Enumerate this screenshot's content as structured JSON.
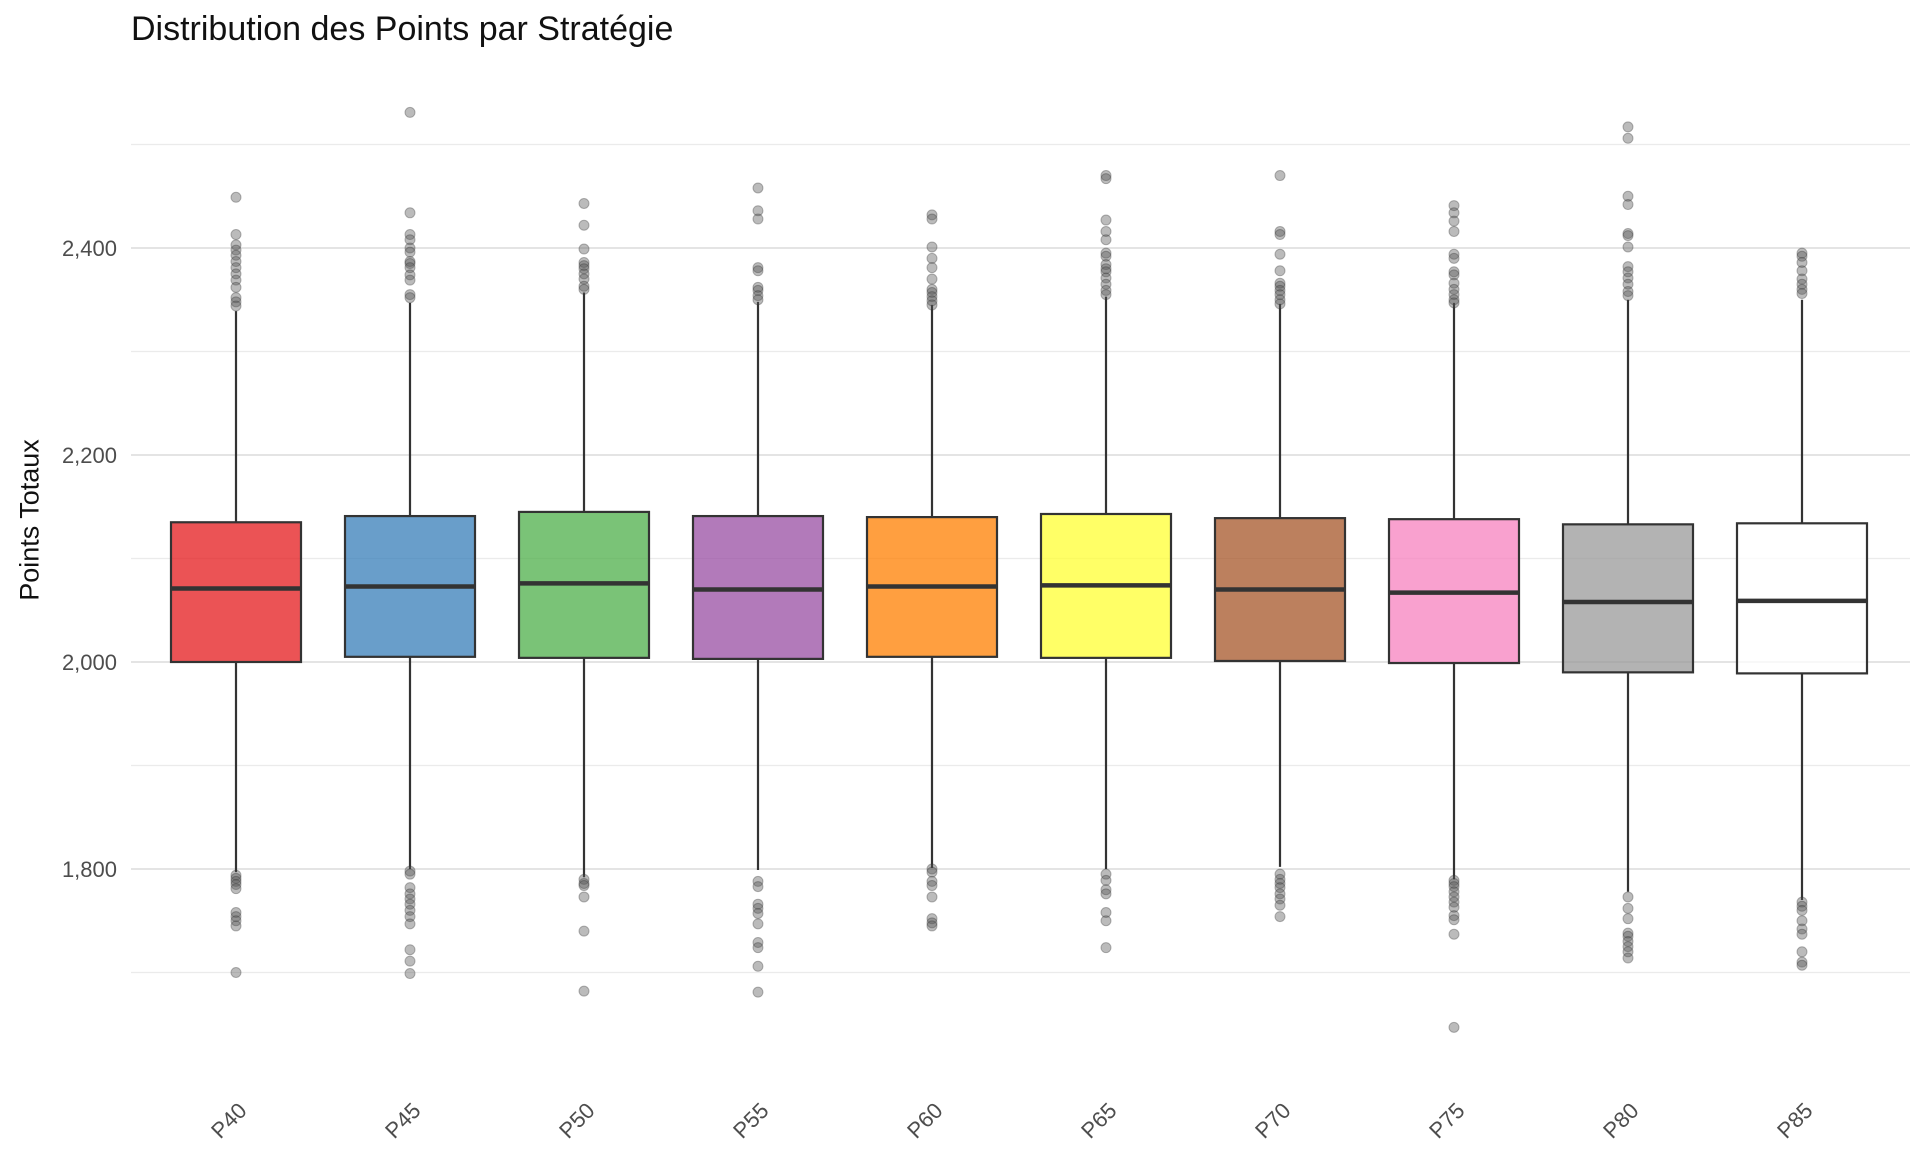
{
  "chart_data": {
    "type": "box",
    "title": "Distribution des Points par Stratégie",
    "xlabel": "",
    "ylabel": "Points Totaux",
    "ylim": [
      1620,
      2550
    ],
    "yticks": [
      1800,
      2000,
      2200,
      2400
    ],
    "ytick_labels": [
      "1,800",
      "2,000",
      "2,200",
      "2,400"
    ],
    "grid": true,
    "legend": "none",
    "categories": [
      "P40",
      "P45",
      "P50",
      "P55",
      "P60",
      "P65",
      "P70",
      "P75",
      "P80",
      "P85"
    ],
    "series": [
      {
        "category": "P40",
        "color": "#E41A1C",
        "q1": 2000,
        "median": 2071,
        "q3": 2135,
        "whisker_low": 1797,
        "whisker_high": 2339,
        "outliers": [
          2449,
          2413,
          2403,
          2398,
          2393,
          2387,
          2381,
          2375,
          2369,
          2362,
          2352,
          2348,
          2344,
          1794,
          1791,
          1788,
          1785,
          1781,
          1758,
          1754,
          1750,
          1745,
          1700
        ]
      },
      {
        "category": "P45",
        "color": "#377EB8",
        "q1": 2005,
        "median": 2073,
        "q3": 2141,
        "whisker_low": 1800,
        "whisker_high": 2347,
        "outliers": [
          2531,
          2434,
          2413,
          2408,
          2400,
          2396,
          2387,
          2385,
          2381,
          2374,
          2369,
          2355,
          2352,
          1798,
          1795,
          1782,
          1776,
          1771,
          1766,
          1760,
          1754,
          1747,
          1722,
          1711,
          1699
        ]
      },
      {
        "category": "P50",
        "color": "#4DAF4A",
        "q1": 2004,
        "median": 2076,
        "q3": 2145,
        "whisker_low": 1792,
        "whisker_high": 2357,
        "outliers": [
          2443,
          2422,
          2399,
          2386,
          2383,
          2380,
          2375,
          2370,
          2363,
          2360,
          1790,
          1786,
          1784,
          1773,
          1740,
          1682
        ]
      },
      {
        "category": "P55",
        "color": "#984EA3",
        "q1": 2003,
        "median": 2070,
        "q3": 2141,
        "whisker_low": 1799,
        "whisker_high": 2348,
        "outliers": [
          2458,
          2436,
          2428,
          2381,
          2378,
          2362,
          2359,
          2354,
          2350,
          1788,
          1783,
          1766,
          1762,
          1757,
          1747,
          1729,
          1724,
          1706,
          1681
        ]
      },
      {
        "category": "P60",
        "color": "#FF7F00",
        "q1": 2005,
        "median": 2073,
        "q3": 2140,
        "whisker_low": 1801,
        "whisker_high": 2345,
        "outliers": [
          2432,
          2428,
          2401,
          2390,
          2381,
          2370,
          2360,
          2357,
          2353,
          2349,
          2345,
          1800,
          1797,
          1788,
          1784,
          1773,
          1752,
          1748,
          1745
        ]
      },
      {
        "category": "P65",
        "color": "#FFFF33",
        "q1": 2004,
        "median": 2074,
        "q3": 2143,
        "whisker_low": 1800,
        "whisker_high": 2353,
        "outliers": [
          2470,
          2467,
          2427,
          2416,
          2408,
          2395,
          2392,
          2384,
          2380,
          2377,
          2371,
          2365,
          2359,
          2355,
          1795,
          1789,
          1780,
          1776,
          1758,
          1750,
          1724
        ]
      },
      {
        "category": "P70",
        "color": "#A65628",
        "q1": 2001,
        "median": 2070,
        "q3": 2139,
        "whisker_low": 1802,
        "whisker_high": 2346,
        "outliers": [
          2470,
          2416,
          2413,
          2394,
          2378,
          2366,
          2363,
          2359,
          2355,
          2350,
          2346,
          1795,
          1790,
          1786,
          1782,
          1776,
          1771,
          1765,
          1754
        ]
      },
      {
        "category": "P75",
        "color": "#F781BF",
        "q1": 1999,
        "median": 2067,
        "q3": 2138,
        "whisker_low": 1790,
        "whisker_high": 2347,
        "outliers": [
          2441,
          2434,
          2426,
          2416,
          2394,
          2390,
          2377,
          2374,
          2366,
          2360,
          2355,
          2350,
          2347,
          1789,
          1786,
          1783,
          1778,
          1773,
          1768,
          1763,
          1755,
          1751,
          1737,
          1647
        ]
      },
      {
        "category": "P80",
        "color": "#999999",
        "q1": 1990,
        "median": 2058,
        "q3": 2133,
        "whisker_low": 1778,
        "whisker_high": 2350,
        "outliers": [
          2517,
          2506,
          2450,
          2442,
          2414,
          2412,
          2401,
          2382,
          2377,
          2371,
          2365,
          2358,
          2354,
          1773,
          1762,
          1752,
          1738,
          1735,
          1730,
          1725,
          1720,
          1714
        ]
      },
      {
        "category": "P85",
        "color": "#FFFFFF",
        "q1": 1989,
        "median": 2059,
        "q3": 2134,
        "whisker_low": 1770,
        "whisker_high": 2350,
        "outliers": [
          2395,
          2392,
          2386,
          2378,
          2370,
          2365,
          2360,
          2356,
          1768,
          1764,
          1760,
          1750,
          1742,
          1737,
          1720,
          1710,
          1707
        ]
      }
    ]
  }
}
